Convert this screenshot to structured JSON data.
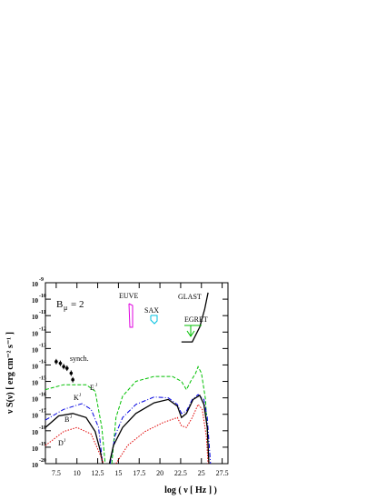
{
  "chart_data": {
    "type": "line",
    "xlabel": "log ( ν [ Hz ] )",
    "ylabel": "ν S(ν) [ erg cm⁻² s⁻¹ ]",
    "xlim": [
      6.2,
      28.2
    ],
    "ylim": [
      -20,
      -9
    ],
    "xticks": [
      7.5,
      10,
      12.5,
      15,
      17.5,
      20,
      22.5,
      25,
      27.5
    ],
    "yticks": [
      -9,
      -10,
      -11,
      -12,
      -13,
      -14,
      -15,
      -16,
      -17,
      -18,
      -19,
      -20
    ],
    "ytick_base": "10",
    "annotation": {
      "main": "B",
      "sub": "μ",
      "rest": "= 2"
    },
    "series": [
      {
        "name": "E",
        "sup": "J",
        "color": "#00c000",
        "style": "dashed",
        "x": [
          6.2,
          8.4,
          11.1,
          12.2,
          13.0,
          13.4,
          null,
          14.2,
          14.7,
          15.5,
          17.1,
          19.3,
          21.5,
          22.6,
          23.2,
          23.7,
          24.3,
          24.6,
          25.0,
          25.5,
          25.9
        ],
        "values": [
          -15.5,
          -15.2,
          -15.2,
          -15.6,
          -17.8,
          -20.0,
          null,
          -20.0,
          -17.2,
          -15.9,
          -15.0,
          -14.7,
          -14.7,
          -15.0,
          -15.5,
          -15.0,
          -14.5,
          -14.1,
          -14.5,
          -16.1,
          -20.0
        ]
      },
      {
        "name": "K",
        "sup": "J",
        "color": "#0000e0",
        "style": "dashdot",
        "x": [
          6.2,
          8.4,
          10.6,
          11.7,
          12.6,
          13.1,
          null,
          14.0,
          14.6,
          15.5,
          17.1,
          19.3,
          21.0,
          22.1,
          22.6,
          23.2,
          23.9,
          24.6,
          25.3,
          25.7,
          26.1
        ],
        "values": [
          -17.35,
          -16.7,
          -16.35,
          -16.7,
          -17.8,
          -20.0,
          null,
          -20.0,
          -18.3,
          -17.2,
          -16.4,
          -15.95,
          -16.0,
          -16.4,
          -16.95,
          -16.8,
          -16.1,
          -15.8,
          -16.1,
          -17.2,
          -20.0
        ]
      },
      {
        "name": "B",
        "sup": "J",
        "color": "#000000",
        "style": "solid",
        "x": [
          6.2,
          7.8,
          9.5,
          11.1,
          12.2,
          12.8,
          13.1,
          null,
          13.9,
          14.4,
          15.5,
          17.1,
          19.3,
          21.0,
          22.1,
          22.6,
          23.2,
          24.0,
          24.8,
          25.3,
          25.7,
          25.9
        ],
        "values": [
          -17.8,
          -17.1,
          -16.95,
          -17.2,
          -18.05,
          -19.2,
          -20.0,
          null,
          -20.0,
          -18.9,
          -17.8,
          -16.95,
          -16.3,
          -16.1,
          -16.5,
          -17.2,
          -16.95,
          -16.1,
          -15.85,
          -16.4,
          -17.8,
          -20.0
        ]
      },
      {
        "name": "D",
        "sup": "J",
        "color": "#e00000",
        "style": "dotted",
        "x": [
          6.2,
          8.4,
          10.0,
          11.7,
          12.8,
          13.2,
          null,
          14.7,
          16.1,
          18.2,
          20.4,
          22.1,
          22.6,
          23.2,
          23.9,
          24.6,
          25.1,
          25.6,
          25.8
        ],
        "values": [
          -18.9,
          -18.05,
          -17.8,
          -18.2,
          -19.45,
          -20.0,
          null,
          -20.0,
          -18.9,
          -18.05,
          -17.5,
          -17.2,
          -17.7,
          -17.8,
          -17.2,
          -16.4,
          -16.7,
          -18.35,
          -20.0
        ]
      },
      {
        "name": "GLAST",
        "color": "#000000",
        "style": "solid",
        "x": [
          22.6,
          23.9,
          24.8,
          25.4,
          25.8
        ],
        "values": [
          -12.6,
          -12.6,
          -11.7,
          -10.6,
          -9.6
        ]
      }
    ],
    "synch": {
      "name": "synch.",
      "x": [
        7.5,
        8.0,
        8.4,
        8.8,
        9.3,
        9.5
      ],
      "values": [
        -13.8,
        -13.9,
        -14.1,
        -14.2,
        -14.5,
        -14.9
      ]
    },
    "instruments": [
      {
        "name": "EUVE",
        "color": "#e000e0"
      },
      {
        "name": "SAX",
        "color": "#00c0e0"
      },
      {
        "name": "EGRET",
        "color": "#00c000"
      }
    ]
  }
}
